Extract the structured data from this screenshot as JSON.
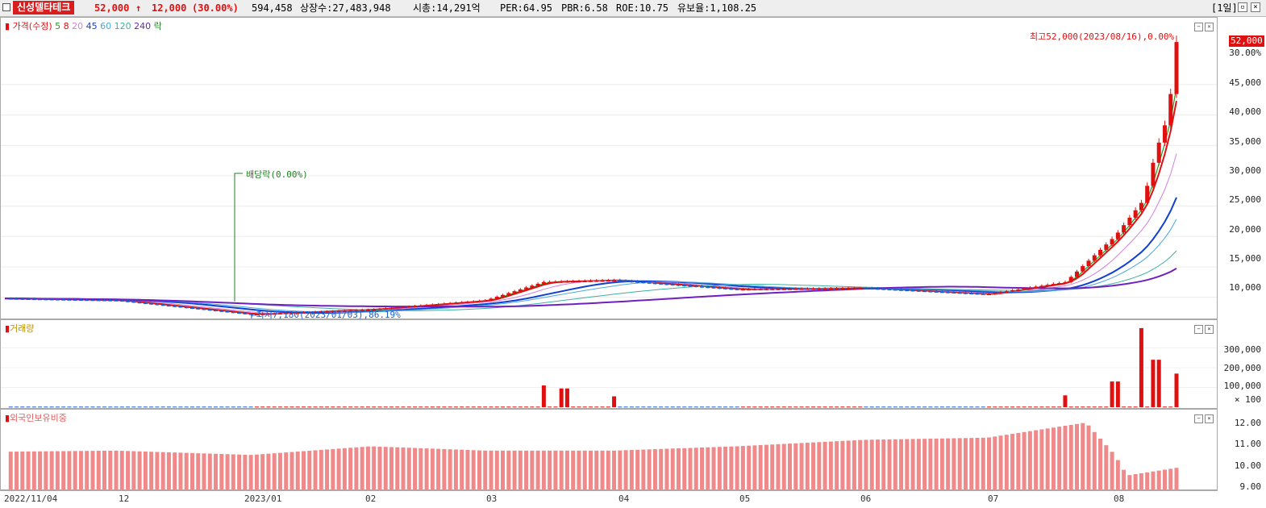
{
  "header": {
    "stock_name": "신성델타테크",
    "price": "52,000",
    "change_arrow": "↑",
    "change": "12,000",
    "change_pct": "(30.00%)",
    "volume": "594,458",
    "listed_shares": "상장수:27,483,948",
    "market_cap": "시총:14,291억",
    "per": "PER:64.95",
    "pbr": "PBR:6.58",
    "roe": "ROE:10.75",
    "float_ratio": "유보율:1,108.25",
    "period": "[1일]"
  },
  "legend": {
    "marker": "▮",
    "price_label": "가격(수정)",
    "ma": [
      {
        "label": "5",
        "color": "#1aa01a"
      },
      {
        "label": "8",
        "color": "#e01010"
      },
      {
        "label": "20",
        "color": "#d080e0"
      },
      {
        "label": "45",
        "color": "#1040d0"
      },
      {
        "label": "60",
        "color": "#4aa8e0"
      },
      {
        "label": "120",
        "color": "#3cb0a0"
      },
      {
        "label": "240",
        "color": "#7020c0"
      },
      {
        "label": "락",
        "color": "#208020"
      }
    ]
  },
  "annotations": {
    "high": "최고52,000(2023/08/16),0.00%",
    "low": "←최저7,180(2023/01/03),86.19%",
    "dividend": "배당락(0.00%)",
    "current_tag": "52,000"
  },
  "volume_panel": {
    "title": "거래량"
  },
  "foreign_panel": {
    "title": "외국인보유비중"
  },
  "price_axis": {
    "ticks": [
      "30.00%",
      "45,000",
      "40,000",
      "35,000",
      "30,000",
      "25,000",
      "20,000",
      "15,000",
      "10,000"
    ]
  },
  "volume_axis": {
    "ticks": [
      "300,000",
      "200,000",
      "100,000",
      "× 100"
    ]
  },
  "foreign_axis": {
    "ticks": [
      "12.00",
      "11.00",
      "10.00",
      "9.00"
    ]
  },
  "x_axis": {
    "ticks": [
      "2022/11/04",
      "12",
      "2023/01",
      "02",
      "03",
      "04",
      "05",
      "06",
      "07",
      "08"
    ]
  },
  "colors": {
    "up": "#e01010",
    "down": "#1a5fd0",
    "foreign_bar": "#f08a8a"
  },
  "chart_data": [
    {
      "type": "candlestick",
      "title": "가격(수정)",
      "x_range": [
        "2022/11/04",
        "2023/08/16"
      ],
      "ylim": [
        6500,
        56000
      ],
      "close_approx": [
        {
          "date": "2022/11/04",
          "close": 9800
        },
        {
          "date": "2022/12/01",
          "close": 9500
        },
        {
          "date": "2023/01/03",
          "close": 7180
        },
        {
          "date": "2023/02/01",
          "close": 8000
        },
        {
          "date": "2023/03/01",
          "close": 9500
        },
        {
          "date": "2023/03/15",
          "close": 12500
        },
        {
          "date": "2023/04/01",
          "close": 12800
        },
        {
          "date": "2023/05/01",
          "close": 11300
        },
        {
          "date": "2023/06/01",
          "close": 11500
        },
        {
          "date": "2023/07/01",
          "close": 10500
        },
        {
          "date": "2023/07/20",
          "close": 12500
        },
        {
          "date": "2023/08/01",
          "close": 20000
        },
        {
          "date": "2023/08/08",
          "close": 26000
        },
        {
          "date": "2023/08/11",
          "close": 34000
        },
        {
          "date": "2023/08/14",
          "close": 40000
        },
        {
          "date": "2023/08/16",
          "close": 52000
        }
      ],
      "high": 52000,
      "low": 7180
    },
    {
      "type": "bar",
      "title": "거래량",
      "ylim": [
        0,
        420000
      ],
      "spikes": [
        {
          "date": "2023/03/15",
          "value": 110000
        },
        {
          "date": "2023/03/20",
          "value": 95000
        },
        {
          "date": "2023/04/01",
          "value": 55000
        },
        {
          "date": "2023/07/20",
          "value": 60000
        },
        {
          "date": "2023/08/01",
          "value": 130000
        },
        {
          "date": "2023/08/08",
          "value": 400000
        },
        {
          "date": "2023/08/11",
          "value": 240000
        },
        {
          "date": "2023/08/16",
          "value": 170000
        }
      ]
    },
    {
      "type": "bar",
      "title": "외국인보유비중",
      "ylim": [
        9.0,
        12.5
      ],
      "points": [
        {
          "date": "2022/11/04",
          "value": 10.55
        },
        {
          "date": "2022/12/01",
          "value": 10.6
        },
        {
          "date": "2023/01/03",
          "value": 10.4
        },
        {
          "date": "2023/02/01",
          "value": 10.8
        },
        {
          "date": "2023/03/01",
          "value": 10.6
        },
        {
          "date": "2023/04/01",
          "value": 10.6
        },
        {
          "date": "2023/05/01",
          "value": 10.8
        },
        {
          "date": "2023/06/01",
          "value": 11.1
        },
        {
          "date": "2023/07/01",
          "value": 11.2
        },
        {
          "date": "2023/07/25",
          "value": 11.9
        },
        {
          "date": "2023/08/01",
          "value": 10.4
        },
        {
          "date": "2023/08/04",
          "value": 9.45
        },
        {
          "date": "2023/08/16",
          "value": 9.8
        }
      ]
    }
  ]
}
